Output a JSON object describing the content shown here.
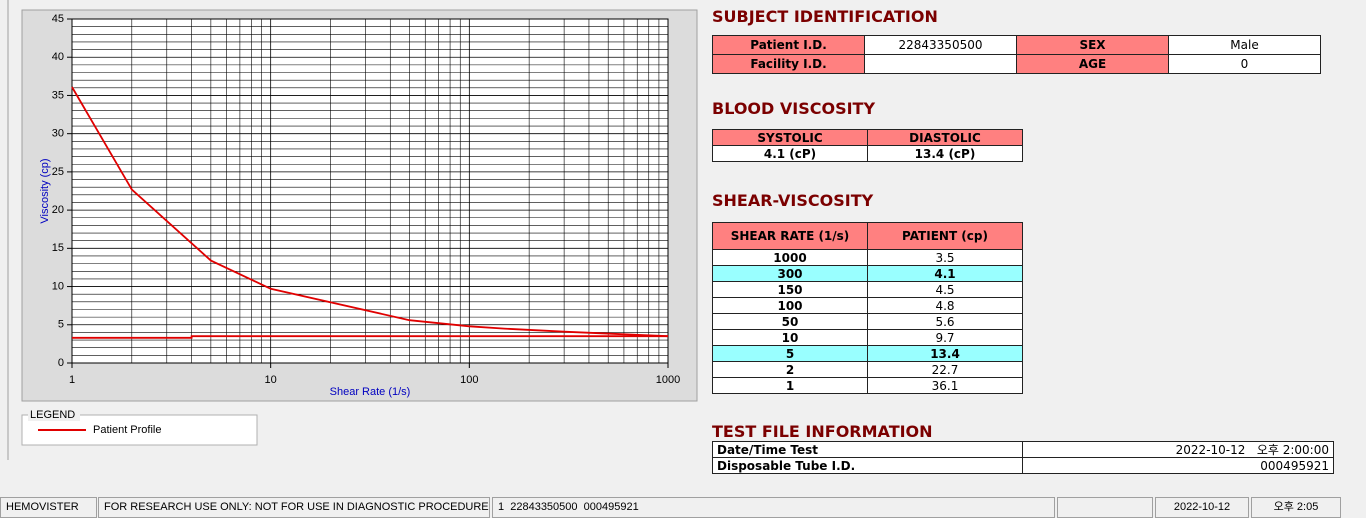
{
  "chart": {
    "type": "line",
    "xlabel": "Shear Rate (1/s)",
    "ylabel": "Viscosity (cp)",
    "xlog": true,
    "xlim": [
      1,
      1000
    ],
    "ylim": [
      0,
      45
    ],
    "xticks": [
      1,
      10,
      100,
      1000
    ],
    "yticks": [
      0,
      5,
      10,
      15,
      20,
      25,
      30,
      35,
      40,
      45
    ],
    "grid": true,
    "series": [
      {
        "name": "Patient Profile",
        "color": "#e00000",
        "x": [
          1,
          2,
          5,
          10,
          50,
          100,
          150,
          300,
          1000
        ],
        "values": [
          36.1,
          22.7,
          13.4,
          9.7,
          5.6,
          4.8,
          4.5,
          4.1,
          3.5
        ]
      },
      {
        "color": "#e00000",
        "x": [
          1,
          4,
          4,
          1000
        ],
        "values": [
          3.3,
          3.3,
          3.5,
          3.5
        ]
      }
    ]
  },
  "legend_title": "LEGEND",
  "subject": {
    "title": "SUBJECT IDENTIFICATION",
    "rows": [
      [
        "Patient I.D.",
        "22843350500",
        "SEX",
        "Male"
      ],
      [
        "Facility I.D.",
        null,
        "AGE",
        "0"
      ]
    ]
  },
  "blood": {
    "title": "BLOOD VISCOSITY",
    "headers": [
      "SYSTOLIC",
      "DIASTOLIC"
    ],
    "values": [
      "4.1 (cP)",
      "13.4 (cP)"
    ]
  },
  "shear": {
    "title": "SHEAR-VISCOSITY",
    "headers": [
      "SHEAR RATE (1/s)",
      "PATIENT (cp)"
    ],
    "rows": [
      [
        "1000",
        "3.5"
      ],
      [
        "300",
        "4.1"
      ],
      [
        "150",
        "4.5"
      ],
      [
        "100",
        "4.8"
      ],
      [
        "50",
        "5.6"
      ],
      [
        "10",
        "9.7"
      ],
      [
        "5",
        "13.4"
      ],
      [
        "2",
        "22.7"
      ],
      [
        "1",
        "36.1"
      ]
    ],
    "highlighted_rows": [
      1,
      6
    ],
    "highlight_color": "#99ffff"
  },
  "test_file": {
    "title": "TEST FILE INFORMATION",
    "rows": [
      [
        "Date/Time Test",
        "2022-10-12   오후 2:00:00"
      ],
      [
        "Disposable Tube I.D.",
        "000495921"
      ]
    ]
  },
  "status_bar": [
    "HEMOVISTER",
    "FOR RESEARCH USE ONLY: NOT FOR USE IN DIAGNOSTIC PROCEDURES",
    "1  22843350500  000495921",
    null,
    "2022-10-12",
    "오후 2:05"
  ]
}
